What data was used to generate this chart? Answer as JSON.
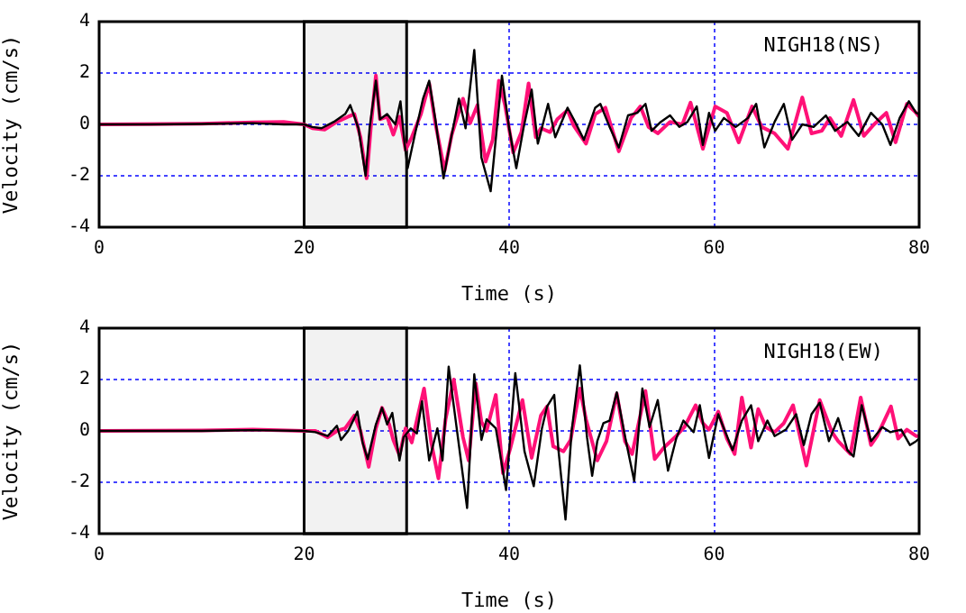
{
  "chart_data": [
    {
      "type": "line",
      "xlabel": "Time (s)",
      "ylabel": "Velocity (cm/s)",
      "xlim": [
        0,
        80
      ],
      "xticks": [
        0,
        20,
        40,
        60,
        80
      ],
      "ylim": [
        -4,
        4
      ],
      "yticks": [
        -4,
        -2,
        0,
        2,
        4
      ],
      "grid": true,
      "legend": false,
      "marker": "none",
      "line_style": "solid",
      "annotations": [
        "NIGH18(NS)"
      ],
      "bands": [
        {
          "axis": "x",
          "from": 20,
          "to": 30,
          "color": "#000000"
        }
      ],
      "series": [
        {
          "color": "#000000",
          "x": [
            0,
            5,
            10,
            15,
            18,
            20,
            20.8,
            21.7,
            22.9,
            24.0,
            24.5,
            24.9,
            25.3,
            26.0,
            26.4,
            27.0,
            27.4,
            28.1,
            28.9,
            29.4,
            29.8,
            30.1,
            30.8,
            31.6,
            32.2,
            32.8,
            33.6,
            34.3,
            35.1,
            35.75,
            36.6,
            37.3,
            38.2,
            39.3,
            40.0,
            40.7,
            41.4,
            42.2,
            42.8,
            43.8,
            44.5,
            45.7,
            46.3,
            47.3,
            48.4,
            48.9,
            49.8,
            50.7,
            51.6,
            52.5,
            53.3,
            53.9,
            54.8,
            55.7,
            56.6,
            57.4,
            58.3,
            58.9,
            59.5,
            60.1,
            60.95,
            62.1,
            63.3,
            64.1,
            64.9,
            65.9,
            66.8,
            67.6,
            68.6,
            69.7,
            70.9,
            71.8,
            73.0,
            74.1,
            75.3,
            76.4,
            77.2,
            78.1,
            79.0,
            79.7,
            80
          ],
          "values": [
            0,
            0,
            0.02,
            0.05,
            0,
            0,
            -0.1,
            -0.15,
            0.1,
            0.4,
            0.75,
            0.3,
            -0.15,
            -2.0,
            -0.1,
            1.7,
            0.2,
            0.4,
            0,
            0.9,
            -0.75,
            -1.7,
            -0.4,
            1.0,
            1.7,
            0.2,
            -2.1,
            -0.6,
            1.0,
            -0.15,
            2.9,
            -1.3,
            -2.6,
            1.9,
            -0.15,
            -1.7,
            -0.15,
            1.35,
            -0.75,
            0.8,
            -0.5,
            0.65,
            0.2,
            -0.6,
            0.65,
            0.8,
            -0.1,
            -0.9,
            0.35,
            0.45,
            0.8,
            -0.25,
            0.1,
            0.35,
            -0.1,
            0.1,
            0.7,
            -0.8,
            0.45,
            -0.25,
            0.25,
            -0.1,
            0.25,
            0.8,
            -0.9,
            0.1,
            0.8,
            -0.6,
            0,
            -0.1,
            0.35,
            -0.25,
            0.1,
            -0.45,
            0.45,
            0,
            -0.8,
            0.25,
            0.9,
            0.45,
            0.4
          ]
        },
        {
          "color": "#ff1177",
          "x": [
            0,
            10,
            15,
            18,
            20,
            20.8,
            22.0,
            23.2,
            24.3,
            24.9,
            25.5,
            26.1,
            26.5,
            27.0,
            27.4,
            28.1,
            28.7,
            29.3,
            29.9,
            30.5,
            31.4,
            32.2,
            32.8,
            33.7,
            34.4,
            35.5,
            36.2,
            36.9,
            37.7,
            38.4,
            39.0,
            39.6,
            40.4,
            41.2,
            41.9,
            42.6,
            43.1,
            44.0,
            44.7,
            45.7,
            46.3,
            47.5,
            48.4,
            49.4,
            50.7,
            51.9,
            52.8,
            53.6,
            54.5,
            55.7,
            56.9,
            57.7,
            58.9,
            60.1,
            61.25,
            62.4,
            63.7,
            64.65,
            65.9,
            67.2,
            68.6,
            69.5,
            70.5,
            71.3,
            72.4,
            73.6,
            74.6,
            75.6,
            76.8,
            77.7,
            78.8,
            79.7,
            80
          ],
          "values": [
            0,
            0.03,
            0.08,
            0.1,
            0,
            -0.15,
            -0.2,
            0.1,
            0.3,
            0.4,
            -0.5,
            -2.1,
            -0.15,
            1.9,
            0.2,
            0.3,
            -0.4,
            0.3,
            -1.0,
            -0.5,
            0.4,
            1.6,
            0.05,
            -1.8,
            -0.4,
            1.0,
            0.05,
            0.75,
            -1.45,
            -0.6,
            1.7,
            0.75,
            -1.1,
            -0.3,
            1.6,
            -0.5,
            -0.15,
            -0.3,
            0.2,
            0.55,
            -0.05,
            -0.75,
            0.4,
            0.65,
            -1.05,
            0.25,
            0.7,
            -0.1,
            -0.35,
            0.1,
            0,
            0.85,
            -0.95,
            0.7,
            0.45,
            -0.7,
            0.7,
            -0.1,
            -0.35,
            -0.95,
            1.05,
            -0.35,
            -0.25,
            0.25,
            -0.45,
            0.95,
            -0.45,
            0,
            0.45,
            -0.7,
            0.8,
            0.45,
            0.3
          ]
        }
      ]
    },
    {
      "type": "line",
      "xlabel": "Time (s)",
      "ylabel": "Velocity (cm/s)",
      "xlim": [
        0,
        80
      ],
      "xticks": [
        0,
        20,
        40,
        60,
        80
      ],
      "ylim": [
        -4,
        4
      ],
      "yticks": [
        -4,
        -2,
        0,
        2,
        4
      ],
      "grid": true,
      "legend": false,
      "marker": "none",
      "line_style": "solid",
      "annotations": [
        "NIGH18(EW)"
      ],
      "bands": [
        {
          "axis": "x",
          "from": 20,
          "to": 30,
          "color": "#000000"
        }
      ],
      "series": [
        {
          "color": "#000000",
          "x": [
            0,
            10,
            15,
            20,
            21.1,
            22.3,
            23.2,
            23.6,
            24.3,
            25.2,
            25.7,
            26.2,
            27.0,
            27.6,
            28.1,
            28.6,
            29.3,
            29.7,
            30.4,
            31.0,
            31.5,
            32.2,
            33.0,
            33.5,
            34.1,
            35.0,
            35.9,
            36.6,
            37.3,
            37.8,
            38.7,
            39.7,
            40.6,
            41.5,
            42.4,
            43.2,
            43.7,
            44.4,
            44.8,
            45.5,
            46.1,
            46.9,
            47.6,
            48.1,
            48.6,
            49.2,
            49.8,
            50.5,
            51.3,
            52.2,
            53.0,
            53.7,
            54.5,
            55.5,
            56.3,
            57.0,
            58.0,
            58.6,
            59.5,
            60.4,
            61.1,
            61.8,
            62.7,
            63.6,
            64.3,
            65.2,
            65.9,
            67.0,
            68.0,
            68.75,
            69.5,
            70.3,
            71.2,
            72.1,
            73.0,
            73.6,
            74.4,
            75.3,
            76.4,
            77.2,
            78.25,
            79.1,
            79.7,
            80
          ],
          "values": [
            0,
            0,
            0.03,
            0,
            -0.05,
            -0.2,
            0.2,
            -0.35,
            0,
            0.75,
            -0.45,
            -1.1,
            0.25,
            0.9,
            0.25,
            0.7,
            -1.15,
            -0.25,
            0.1,
            -0.1,
            1.15,
            -1.15,
            0.1,
            -1.15,
            2.5,
            -0.25,
            -3.0,
            2.2,
            -0.35,
            0.45,
            0.1,
            -2.3,
            2.25,
            -0.8,
            -2.15,
            0.1,
            0.95,
            1.4,
            -0.7,
            -3.45,
            0,
            2.55,
            -0.25,
            -1.75,
            -0.4,
            0.3,
            0.4,
            1.5,
            -0.2,
            -1.95,
            1.65,
            0.15,
            1.2,
            -1.55,
            -0.3,
            0.4,
            -0.05,
            1.0,
            -1.05,
            0.65,
            -0.05,
            -0.75,
            0.4,
            1.0,
            -0.4,
            0.4,
            -0.2,
            0.05,
            0.65,
            -0.55,
            0.65,
            1.1,
            -0.4,
            0.5,
            -0.75,
            -1.0,
            1.0,
            -0.4,
            0.15,
            -0.05,
            0.05,
            -0.55,
            -0.4,
            -0.3
          ]
        },
        {
          "color": "#ff1177",
          "x": [
            0,
            10,
            15,
            20,
            21.1,
            22.3,
            23.2,
            24.0,
            24.9,
            25.5,
            26.3,
            27.0,
            27.6,
            28.3,
            28.7,
            29.3,
            29.9,
            30.5,
            31.1,
            31.7,
            32.4,
            33.1,
            33.8,
            34.6,
            35.5,
            36.05,
            36.75,
            37.3,
            37.8,
            38.7,
            39.4,
            40.1,
            41.3,
            42.2,
            43.1,
            43.7,
            44.3,
            45.3,
            46.0,
            46.9,
            47.5,
            48.6,
            49.5,
            50.5,
            51.3,
            52.0,
            53.3,
            54.2,
            55.1,
            56.3,
            57.1,
            58.2,
            58.9,
            59.5,
            60.4,
            61.25,
            62.0,
            62.7,
            63.6,
            64.3,
            65.05,
            65.9,
            66.8,
            67.7,
            69.0,
            70.3,
            71.5,
            72.1,
            73.3,
            74.3,
            75.3,
            75.9,
            77.25,
            77.95,
            78.8,
            79.7,
            80
          ],
          "values": [
            0,
            0.02,
            0.05,
            0,
            0,
            -0.25,
            0,
            0.1,
            0.6,
            0,
            -1.4,
            0.1,
            0.9,
            0.25,
            -0.35,
            -0.95,
            0.1,
            -0.45,
            0.6,
            1.65,
            -0.45,
            -1.85,
            0.45,
            2.0,
            -0.25,
            -1.15,
            1.85,
            0.35,
            0,
            1.4,
            -1.65,
            -0.7,
            1.2,
            -1.05,
            0.6,
            0.95,
            -0.6,
            -0.8,
            -0.35,
            1.65,
            0.45,
            -1.15,
            -0.4,
            1.45,
            -0.4,
            -0.9,
            1.55,
            -1.1,
            -0.65,
            -0.2,
            0.15,
            1.0,
            0.3,
            0.05,
            0.75,
            -0.3,
            -0.9,
            1.3,
            -0.65,
            0.85,
            0.15,
            -0.05,
            0.3,
            1.0,
            -1.35,
            1.2,
            -0.05,
            -0.4,
            -0.9,
            1.3,
            -0.55,
            -0.2,
            0.95,
            -0.3,
            0.05,
            -0.2,
            -0.2
          ]
        }
      ]
    }
  ]
}
